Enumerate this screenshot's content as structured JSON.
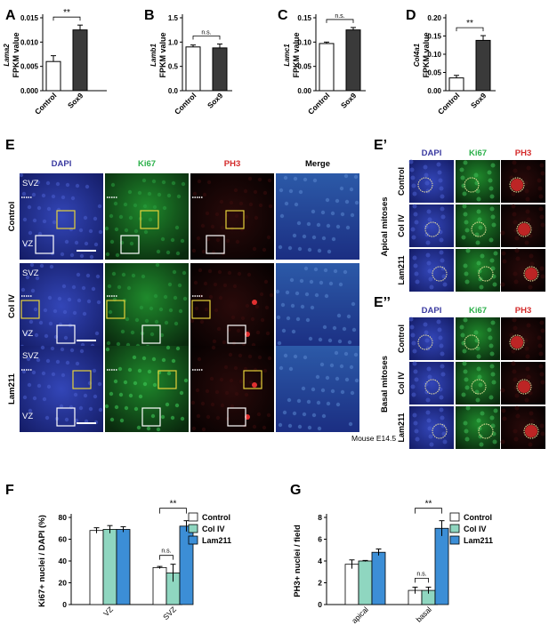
{
  "panel_letters": {
    "A": "A",
    "B": "B",
    "C": "C",
    "D": "D",
    "E": "E",
    "E1": "E’",
    "E2": "E’’",
    "F": "F",
    "G": "G"
  },
  "top_charts": [
    {
      "letter": "A",
      "gene": "Lama2",
      "ylabel_suffix": "FPKM value",
      "yticks": [
        "0.000",
        "0.005",
        "0.010",
        "0.015"
      ],
      "sig": "**"
    },
    {
      "letter": "B",
      "gene": "Lamb1",
      "ylabel_suffix": "FPKM value",
      "yticks": [
        "0.0",
        "0.5",
        "1.0",
        "1.5"
      ],
      "sig": "n.s."
    },
    {
      "letter": "C",
      "gene": "Lamc1",
      "ylabel_suffix": "FPKM value",
      "yticks": [
        "0.00",
        "0.05",
        "0.10",
        "0.15"
      ],
      "sig": "n.s."
    },
    {
      "letter": "D",
      "gene": "Col4a1",
      "ylabel_suffix": "FPKM value",
      "yticks": [
        "0.00",
        "0.05",
        "0.10",
        "0.15",
        "0.20"
      ],
      "sig": "**"
    }
  ],
  "bottom_charts": [
    {
      "letter": "F",
      "ylabel": "Ki67+ nuclei / DAPI (%)",
      "yticks": [
        "0",
        "20",
        "40",
        "60",
        "80"
      ],
      "groups": [
        "VZ",
        "SVZ"
      ],
      "sig_main": "**",
      "sig_minor": "n.s.",
      "legend": [
        "Control",
        "Col IV",
        "Lam211"
      ]
    },
    {
      "letter": "G",
      "ylabel": "PH3+ nuclei / field",
      "yticks": [
        "0",
        "2",
        "4",
        "6",
        "8"
      ],
      "groups": [
        "apical",
        "basal"
      ],
      "sig_main": "**",
      "sig_minor": "n.s.",
      "legend": [
        "Control",
        "Col IV",
        "Lam211"
      ]
    }
  ],
  "chart_data": [
    {
      "type": "bar",
      "title": "",
      "xlabel": "",
      "ylabel": "Lama2 FPKM value",
      "categories": [
        "Control",
        "Sox9"
      ],
      "values": [
        0.006,
        0.0125
      ],
      "errors": [
        0.0012,
        0.001
      ],
      "ylim": [
        0,
        0.015
      ],
      "colors": [
        "#ffffff",
        "#3a3a3a"
      ]
    },
    {
      "type": "bar",
      "title": "",
      "xlabel": "",
      "ylabel": "Lamb1 FPKM value",
      "categories": [
        "Control",
        "Sox9"
      ],
      "values": [
        0.9,
        0.88
      ],
      "errors": [
        0.04,
        0.08
      ],
      "ylim": [
        0,
        1.5
      ],
      "colors": [
        "#ffffff",
        "#3a3a3a"
      ]
    },
    {
      "type": "bar",
      "title": "",
      "xlabel": "",
      "ylabel": "Lamc1 FPKM value",
      "categories": [
        "Control",
        "Sox9"
      ],
      "values": [
        0.097,
        0.125
      ],
      "errors": [
        0.003,
        0.005
      ],
      "ylim": [
        0,
        0.15
      ],
      "colors": [
        "#ffffff",
        "#3a3a3a"
      ]
    },
    {
      "type": "bar",
      "title": "",
      "xlabel": "",
      "ylabel": "Col4a1 FPKM value",
      "categories": [
        "Control",
        "Sox9"
      ],
      "values": [
        0.035,
        0.138
      ],
      "errors": [
        0.007,
        0.013
      ],
      "ylim": [
        0,
        0.2
      ],
      "colors": [
        "#ffffff",
        "#3a3a3a"
      ]
    },
    {
      "type": "bar",
      "title": "",
      "xlabel": "",
      "ylabel": "Ki67+ nuclei / DAPI (%)",
      "categories": [
        "VZ",
        "SVZ"
      ],
      "ylim": [
        0,
        80
      ],
      "legend_position": "top-right",
      "series": [
        {
          "name": "Control",
          "values": [
            68,
            34
          ],
          "errors": [
            2.5,
            1
          ]
        },
        {
          "name": "Col IV",
          "values": [
            69,
            29
          ],
          "errors": [
            3.5,
            8
          ]
        },
        {
          "name": "Lam211",
          "values": [
            69,
            72
          ],
          "errors": [
            2.5,
            5
          ]
        }
      ]
    },
    {
      "type": "bar",
      "title": "",
      "xlabel": "",
      "ylabel": "PH3+ nuclei / field",
      "categories": [
        "apical",
        "basal"
      ],
      "ylim": [
        0,
        8
      ],
      "legend_position": "top-right",
      "series": [
        {
          "name": "Control",
          "values": [
            3.7,
            1.3
          ],
          "errors": [
            0.4,
            0.3
          ]
        },
        {
          "name": "Col IV",
          "values": [
            4.0,
            1.3
          ],
          "errors": [
            0.05,
            0.3
          ]
        },
        {
          "name": "Lam211",
          "values": [
            4.8,
            7.0
          ],
          "errors": [
            0.3,
            0.7
          ]
        }
      ]
    }
  ],
  "series_colors": {
    "Control": "#ffffff",
    "Col IV": "#8fd6c0",
    "Lam211": "#3c8ed6"
  },
  "panel_e": {
    "channels": [
      "DAPI",
      "Ki67",
      "PH3",
      "Merge"
    ],
    "channel_colors": [
      "#3a3aa0",
      "#2bb04a",
      "#d42a2a",
      "#000000"
    ],
    "rows": [
      "Control",
      "Col IV",
      "Lam211"
    ],
    "zones": {
      "svz": "SVZ",
      "vz": "VZ"
    },
    "caption": "Mouse E14.5"
  },
  "panel_e1": {
    "channels": [
      "DAPI",
      "Ki67",
      "PH3"
    ],
    "rows": [
      "Control",
      "Col IV",
      "Lam211"
    ],
    "side_label": "Apical mitoses"
  },
  "panel_e2": {
    "channels": [
      "DAPI",
      "Ki67",
      "PH3"
    ],
    "rows": [
      "Control",
      "Col IV",
      "Lam211"
    ],
    "side_label": "Basal mitoses"
  }
}
